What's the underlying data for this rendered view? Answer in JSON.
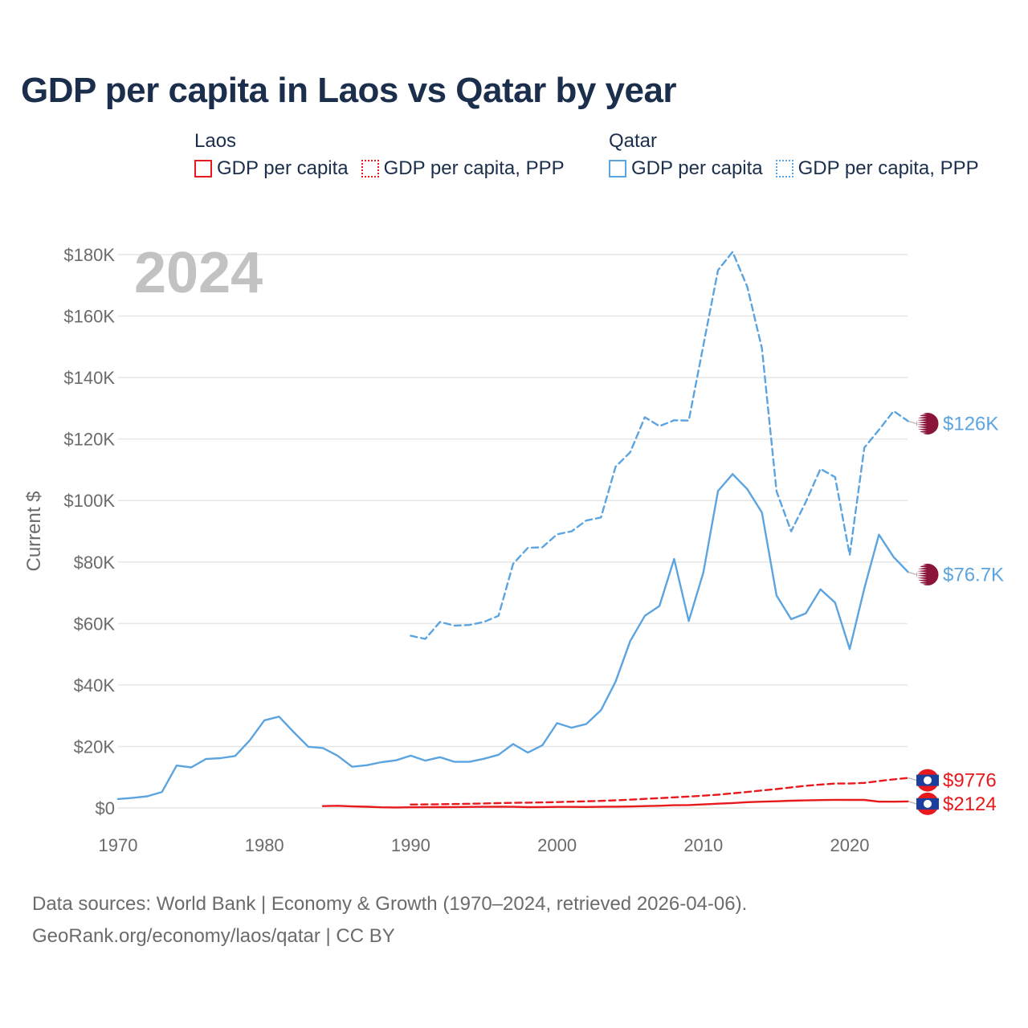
{
  "title": "GDP per capita in Laos vs Qatar by year",
  "legend": {
    "groups": [
      {
        "name": "Laos",
        "items": [
          {
            "label": "GDP per capita",
            "style": "solid"
          },
          {
            "label": "GDP per capita, PPP",
            "style": "dotted"
          }
        ],
        "color": "#e8191c"
      },
      {
        "name": "Qatar",
        "items": [
          {
            "label": "GDP per capita",
            "style": "solid"
          },
          {
            "label": "GDP per capita, PPP",
            "style": "dotted"
          }
        ],
        "color": "#5ca4e0"
      }
    ]
  },
  "source_line1": "Data sources: World Bank | Economy & Growth (1970–2024, retrieved 2026-04-06).",
  "source_line2": "GeoRank.org/economy/laos/qatar | CC BY",
  "chart_data": {
    "type": "line",
    "title": "GDP per capita in Laos vs Qatar by year",
    "year_label": "2024",
    "ylabel": "Current $",
    "xlabel": "",
    "xlim": [
      1970,
      2024
    ],
    "ylim": [
      0,
      180000
    ],
    "x_ticks": [
      "1970",
      "1980",
      "1990",
      "2000",
      "2010",
      "2020"
    ],
    "y_ticks": [
      {
        "value": 0,
        "label": "$0"
      },
      {
        "value": 20000,
        "label": "$20K"
      },
      {
        "value": 40000,
        "label": "$40K"
      },
      {
        "value": 60000,
        "label": "$60K"
      },
      {
        "value": 80000,
        "label": "$80K"
      },
      {
        "value": 100000,
        "label": "$100K"
      },
      {
        "value": 120000,
        "label": "$120K"
      },
      {
        "value": 140000,
        "label": "$140K"
      },
      {
        "value": 160000,
        "label": "$160K"
      },
      {
        "value": 180000,
        "label": "$180K"
      }
    ],
    "grid": true,
    "series": [
      {
        "name": "Qatar GDP per capita",
        "color": "#5ca4e0",
        "dashed": false,
        "end_label": "$76.7K",
        "flag": "qatar",
        "x": [
          1970,
          1971,
          1972,
          1973,
          1974,
          1975,
          1976,
          1977,
          1978,
          1979,
          1980,
          1981,
          1982,
          1983,
          1984,
          1985,
          1986,
          1987,
          1988,
          1989,
          1990,
          1991,
          1992,
          1993,
          1994,
          1995,
          1996,
          1997,
          1998,
          1999,
          2000,
          2001,
          2002,
          2003,
          2004,
          2005,
          2006,
          2007,
          2008,
          2009,
          2010,
          2011,
          2012,
          2013,
          2014,
          2015,
          2016,
          2017,
          2018,
          2019,
          2020,
          2021,
          2022,
          2023,
          2024
        ],
        "values": [
          2900,
          3300,
          3800,
          5200,
          13800,
          13200,
          15900,
          16200,
          16900,
          22000,
          28500,
          29700,
          24700,
          19900,
          19500,
          17000,
          13400,
          13900,
          14900,
          15500,
          17000,
          15400,
          16500,
          15000,
          15000,
          16000,
          17300,
          20800,
          18000,
          20400,
          27600,
          26100,
          27300,
          31800,
          41100,
          54300,
          62500,
          65700,
          81000,
          60800,
          76600,
          103100,
          108600,
          103700,
          96100,
          69100,
          61400,
          63300,
          71100,
          66800,
          51700,
          71400,
          88900,
          81600,
          76700
        ]
      },
      {
        "name": "Qatar GDP per capita, PPP",
        "color": "#5ca4e0",
        "dashed": true,
        "end_label": "$126K",
        "flag": "qatar",
        "x": [
          1990,
          1991,
          1992,
          1993,
          1994,
          1995,
          1996,
          1997,
          1998,
          1999,
          2000,
          2001,
          2002,
          2003,
          2004,
          2005,
          2006,
          2007,
          2008,
          2009,
          2010,
          2011,
          2012,
          2013,
          2014,
          2015,
          2016,
          2017,
          2018,
          2019,
          2020,
          2021,
          2022,
          2023,
          2024
        ],
        "values": [
          56000,
          55000,
          60500,
          59300,
          59500,
          60500,
          62500,
          79400,
          84600,
          84800,
          89000,
          90000,
          93500,
          94500,
          111000,
          115700,
          127100,
          124200,
          126100,
          126000,
          150500,
          174900,
          180900,
          169500,
          149500,
          103000,
          90000,
          99500,
          110300,
          107600,
          82300,
          117200,
          123000,
          129100,
          125800
        ]
      },
      {
        "name": "Laos GDP per capita",
        "color": "#e8191c",
        "dashed": false,
        "end_label": "$2124",
        "flag": "laos",
        "x": [
          1984,
          1985,
          1986,
          1987,
          1988,
          1989,
          1990,
          1991,
          1992,
          1993,
          1994,
          1995,
          1996,
          1997,
          1998,
          1999,
          2000,
          2001,
          2002,
          2003,
          2004,
          2005,
          2006,
          2007,
          2008,
          2009,
          2010,
          2011,
          2012,
          2013,
          2014,
          2015,
          2016,
          2017,
          2018,
          2019,
          2020,
          2021,
          2022,
          2023,
          2024
        ],
        "values": [
          600,
          700,
          500,
          400,
          200,
          150,
          200,
          230,
          250,
          290,
          330,
          370,
          390,
          360,
          260,
          280,
          330,
          330,
          320,
          370,
          420,
          480,
          600,
          700,
          900,
          940,
          1140,
          1390,
          1590,
          1880,
          2050,
          2160,
          2340,
          2450,
          2570,
          2630,
          2620,
          2600,
          2050,
          2050,
          2124
        ]
      },
      {
        "name": "Laos GDP per capita, PPP",
        "color": "#e8191c",
        "dashed": true,
        "end_label": "$9776",
        "flag": "laos",
        "x": [
          1990,
          1991,
          1992,
          1993,
          1994,
          1995,
          1996,
          1997,
          1998,
          1999,
          2000,
          2001,
          2002,
          2003,
          2004,
          2005,
          2006,
          2007,
          2008,
          2009,
          2010,
          2011,
          2012,
          2013,
          2014,
          2015,
          2016,
          2017,
          2018,
          2019,
          2020,
          2021,
          2022,
          2023,
          2024
        ],
        "values": [
          1100,
          1150,
          1200,
          1280,
          1370,
          1460,
          1560,
          1660,
          1720,
          1810,
          1910,
          2030,
          2160,
          2310,
          2480,
          2700,
          2950,
          3200,
          3450,
          3720,
          4000,
          4300,
          4750,
          5200,
          5700,
          6150,
          6700,
          7200,
          7600,
          7950,
          7950,
          8150,
          8750,
          9300,
          9776
        ]
      }
    ]
  }
}
